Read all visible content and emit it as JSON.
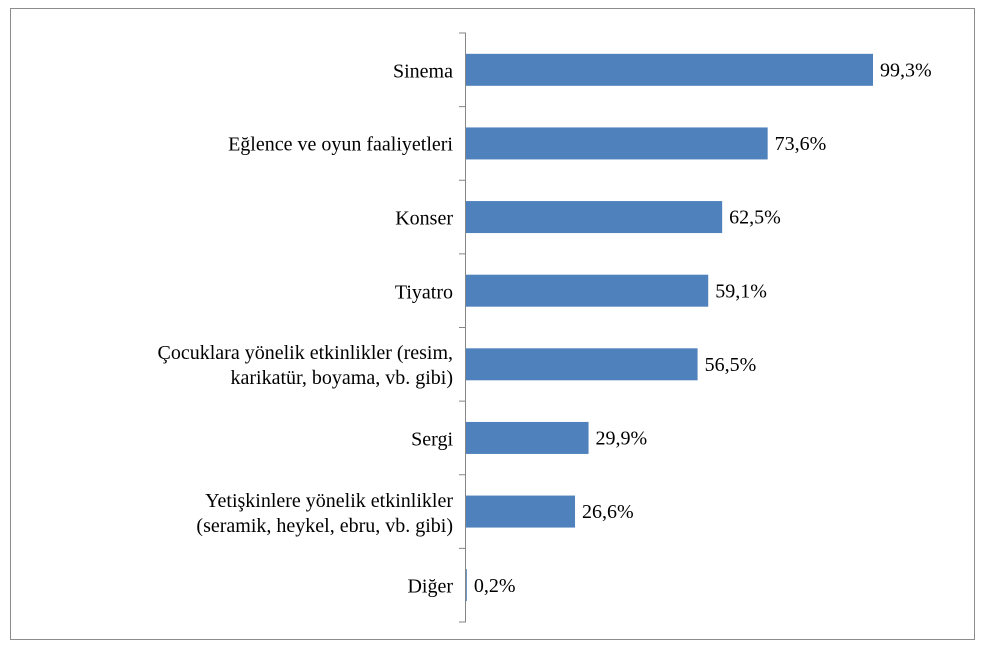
{
  "chart_data": {
    "type": "bar",
    "orientation": "horizontal",
    "categories": [
      "Sinema",
      "Eğlence ve oyun faaliyetleri",
      "Konser",
      "Tiyatro",
      "Çocuklara yönelik etkinlikler (resim,\nkarikatür, boyama, vb. gibi)",
      "Sergi",
      "Yetişkinlere yönelik etkinlikler\n(seramik, heykel, ebru, vb. gibi)",
      "Diğer"
    ],
    "values": [
      99.3,
      73.6,
      62.5,
      59.1,
      56.5,
      29.9,
      26.6,
      0.2
    ],
    "value_labels": [
      "99,3%",
      "73,6%",
      "62,5%",
      "59,1%",
      "56,5%",
      "29,9%",
      "26,6%",
      "0,2%"
    ],
    "color": "#4f81bd"
  }
}
